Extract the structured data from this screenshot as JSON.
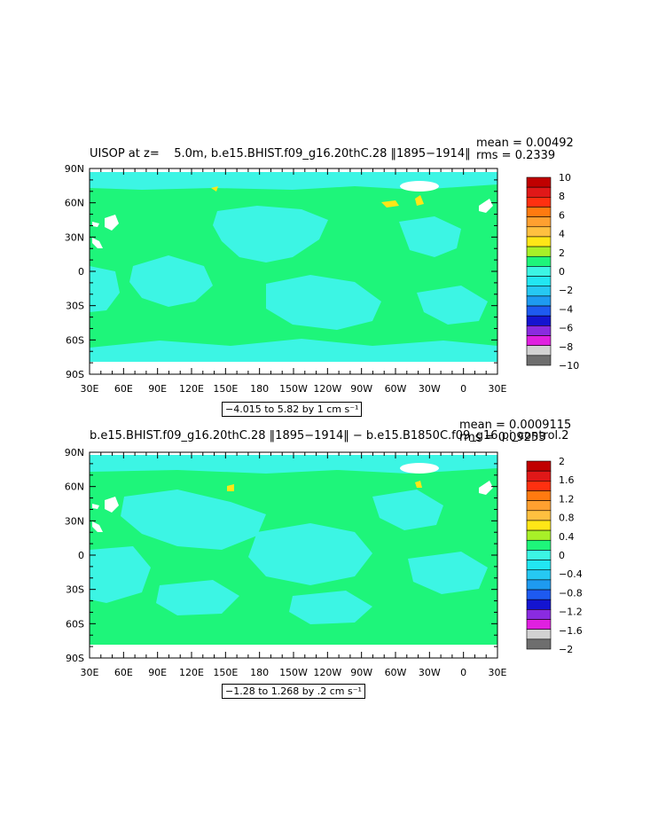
{
  "colors": {
    "ocean_base": "#1EF57A",
    "neg_band": "#3CF5E4",
    "pos_band": "#FFE617",
    "land": "#FFFFFF"
  },
  "panels": [
    {
      "title": "UISOP at z=    5.0m, b.e15.BHIST.f09_g16.20thC.28 ‖1895−1914‖",
      "mean": "mean = 0.00492",
      "rms": "rms = 0.2339",
      "info": "−4.015 to 5.82 by 1 cm s⁻¹",
      "colorbar": {
        "labels": [
          "10",
          "8",
          "6",
          "4",
          "2",
          "0",
          "−2",
          "−4",
          "−6",
          "−8",
          "−10"
        ],
        "colors": [
          "#C00000",
          "#E01818",
          "#FF3010",
          "#FF7A10",
          "#FFA030",
          "#FFC040",
          "#FFE617",
          "#A8F028",
          "#1EF57A",
          "#3CF5E4",
          "#22E6F2",
          "#26C8F2",
          "#1E9AF0",
          "#1E5AF0",
          "#1414D0",
          "#8A2BE0",
          "#E020E0",
          "#D2D2D2",
          "#6E6E6E"
        ]
      }
    },
    {
      "title": "b.e15.BHIST.f09_g16.20thC.28 ‖1895−1914‖ − b.e15.B1850C.f09_g16.pi_control.2",
      "mean": "mean = 0.0009115",
      "rms": "rms = 0.09253",
      "info": "−1.28 to 1.268 by .2 cm s⁻¹",
      "colorbar": {
        "labels": [
          "2",
          "1.6",
          "1.2",
          "0.8",
          "0.4",
          "0",
          "−0.4",
          "−0.8",
          "−1.2",
          "−1.6",
          "−2"
        ],
        "colors": [
          "#C00000",
          "#E01818",
          "#FF3010",
          "#FF7A10",
          "#FFA030",
          "#FFC040",
          "#FFE617",
          "#A8F028",
          "#1EF57A",
          "#3CF5E4",
          "#22E6F2",
          "#26C8F2",
          "#1E9AF0",
          "#1E5AF0",
          "#1414D0",
          "#8A2BE0",
          "#E020E0",
          "#D2D2D2",
          "#6E6E6E"
        ]
      }
    }
  ],
  "axes": {
    "y_ticks": [
      "90N",
      "60N",
      "30N",
      "0",
      "30S",
      "60S",
      "90S"
    ],
    "x_ticks": [
      "30E",
      "60E",
      "90E",
      "120E",
      "150E",
      "180",
      "150W",
      "120W",
      "90W",
      "60W",
      "30W",
      "0",
      "30E"
    ]
  }
}
